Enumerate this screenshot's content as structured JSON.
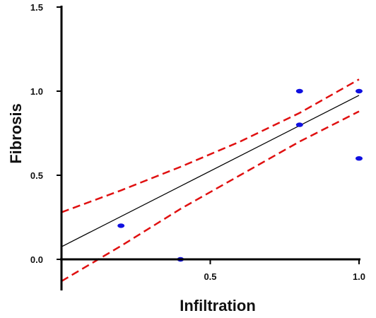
{
  "chart_data": {
    "type": "scatter",
    "xlabel": "Infiltration",
    "ylabel": "Fibrosis",
    "xlim": [
      0,
      1.05
    ],
    "ylim": [
      -0.16,
      1.5
    ],
    "x_ticks": [
      {
        "value": 0.5,
        "label": "0.5"
      },
      {
        "value": 1.0,
        "label": "1.0"
      }
    ],
    "y_ticks": [
      {
        "value": 0.0,
        "label": "0.0"
      },
      {
        "value": 0.5,
        "label": "0.5"
      },
      {
        "value": 1.0,
        "label": "1.0"
      },
      {
        "value": 1.5,
        "label": "1.5"
      }
    ],
    "grid": false,
    "points": [
      {
        "x": 0.2,
        "y": 0.2
      },
      {
        "x": 0.4,
        "y": 0.0
      },
      {
        "x": 0.8,
        "y": 1.0
      },
      {
        "x": 0.8,
        "y": 0.8
      },
      {
        "x": 1.0,
        "y": 1.0
      },
      {
        "x": 1.0,
        "y": 0.6
      }
    ],
    "fit_line": [
      {
        "x": 0.0,
        "y": 0.075
      },
      {
        "x": 1.0,
        "y": 0.975
      }
    ],
    "ci_upper": [
      {
        "x": 0.0,
        "y": 0.28
      },
      {
        "x": 0.2,
        "y": 0.41
      },
      {
        "x": 0.4,
        "y": 0.55
      },
      {
        "x": 0.6,
        "y": 0.7
      },
      {
        "x": 0.8,
        "y": 0.87
      },
      {
        "x": 1.0,
        "y": 1.07
      }
    ],
    "ci_lower": [
      {
        "x": 0.0,
        "y": -0.13
      },
      {
        "x": 0.2,
        "y": 0.08
      },
      {
        "x": 0.4,
        "y": 0.3
      },
      {
        "x": 0.6,
        "y": 0.5
      },
      {
        "x": 0.8,
        "y": 0.7
      },
      {
        "x": 1.0,
        "y": 0.88
      }
    ],
    "colors": {
      "points": "#1010e0",
      "fit_line": "#000000",
      "confidence_band": "#e01010",
      "axes": "#000000"
    }
  }
}
